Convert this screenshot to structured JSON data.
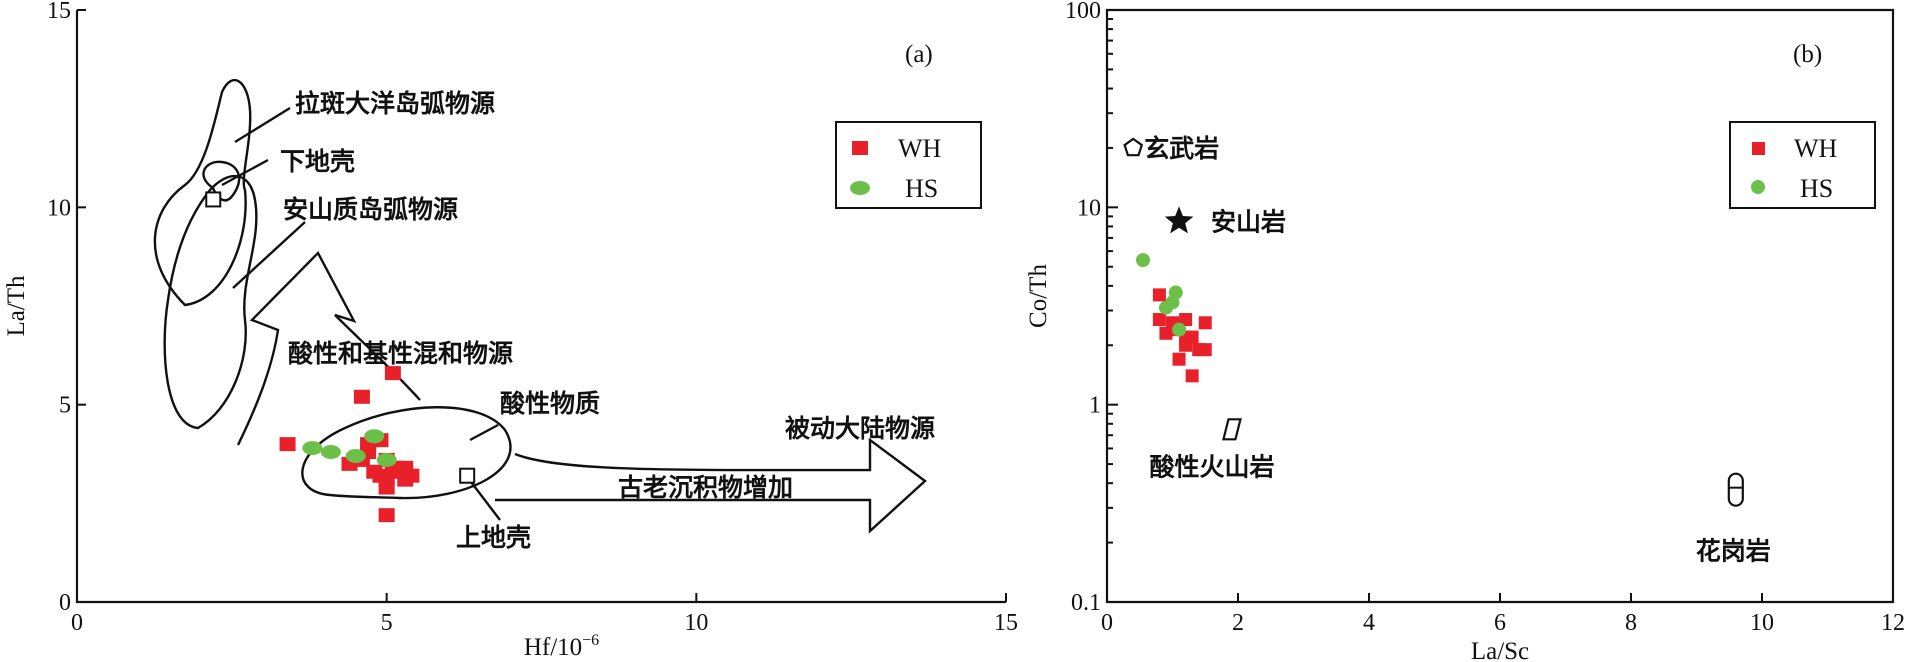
{
  "chart_data": [
    {
      "type": "scatter",
      "panel_label": "(a)",
      "xlabel": "Hf/10",
      "xlabel_exp": "−6",
      "ylabel": "La/Th",
      "xlim": [
        0,
        15
      ],
      "ylim": [
        0,
        15
      ],
      "xticks": [
        "0",
        "5",
        "10",
        "15"
      ],
      "yticks": [
        "0",
        "5",
        "10",
        "15"
      ],
      "legend": {
        "position": "top-right",
        "entries": [
          "WH",
          "HS"
        ]
      },
      "series": [
        {
          "name": "WH",
          "color": "#e8202a",
          "marker": "square",
          "x": [
            3.4,
            4.4,
            4.6,
            4.7,
            4.8,
            4.9,
            5.0,
            5.0,
            5.1,
            5.2,
            5.2,
            5.3,
            5.3,
            5.4,
            4.9,
            5.0,
            4.6,
            5.1,
            4.7,
            5.0
          ],
          "y": [
            4.0,
            3.5,
            3.6,
            4.0,
            3.3,
            3.2,
            3.1,
            2.9,
            3.4,
            3.4,
            3.3,
            3.4,
            3.1,
            3.2,
            4.1,
            2.2,
            5.2,
            5.8,
            3.8,
            3.6
          ]
        },
        {
          "name": "HS",
          "color": "#6cc04a",
          "marker": "circle",
          "x": [
            3.8,
            4.1,
            4.5,
            4.8,
            5.0
          ],
          "y": [
            3.9,
            3.8,
            3.7,
            4.2,
            3.6
          ]
        }
      ],
      "reference_points": [
        {
          "x": 2.2,
          "y": 10.2
        },
        {
          "x": 6.3,
          "y": 3.2
        }
      ],
      "annotations": {
        "oceanic_arc": "拉斑大洋岛弧物源",
        "lower_crust": "下地壳",
        "andesitic_arc": "安山质岛弧物源",
        "mixed_source": "酸性和基性混和物源",
        "felsic": "酸性物质",
        "passive_margin": "被动大陆物源",
        "recycling": "古老沉积物增加",
        "upper_crust": "上地壳"
      }
    },
    {
      "type": "scatter",
      "panel_label": "(b)",
      "xlabel": "La/Sc",
      "ylabel": "Co/Th",
      "xlim": [
        0,
        12
      ],
      "ylim": [
        0.1,
        100
      ],
      "yscale": "log",
      "xticks": [
        "0",
        "2",
        "4",
        "6",
        "8",
        "10",
        "12"
      ],
      "yticks": [
        "0.1",
        "1",
        "10",
        "100"
      ],
      "legend": {
        "position": "top-right",
        "entries": [
          "WH",
          "HS"
        ]
      },
      "series": [
        {
          "name": "WH",
          "color": "#e8202a",
          "marker": "square",
          "x": [
            0.8,
            0.9,
            1.0,
            1.1,
            1.2,
            1.2,
            1.3,
            1.3,
            1.4,
            1.5,
            1.5,
            0.8,
            1.0,
            1.1,
            1.2
          ],
          "y": [
            2.7,
            2.3,
            2.6,
            1.7,
            2.0,
            2.7,
            1.4,
            2.2,
            1.9,
            2.6,
            1.9,
            3.6,
            2.4,
            2.5,
            2.2
          ]
        },
        {
          "name": "HS",
          "color": "#6cc04a",
          "marker": "circle",
          "x": [
            0.55,
            0.9,
            1.0,
            1.05,
            1.1
          ],
          "y": [
            5.4,
            3.1,
            3.3,
            3.7,
            2.4
          ]
        }
      ],
      "reference_rocks": [
        {
          "label": "玄武岩",
          "x": 0.4,
          "y": 20,
          "symbol": "pentagon"
        },
        {
          "label": "安山岩",
          "x": 1.1,
          "y": 8.5,
          "symbol": "star"
        },
        {
          "label": "酸性火山岩",
          "x": 1.9,
          "y": 0.75,
          "symbol": "parallelogram"
        },
        {
          "label": "花岗岩",
          "x": 9.6,
          "y": 0.33,
          "symbol": "capsule"
        }
      ]
    }
  ]
}
